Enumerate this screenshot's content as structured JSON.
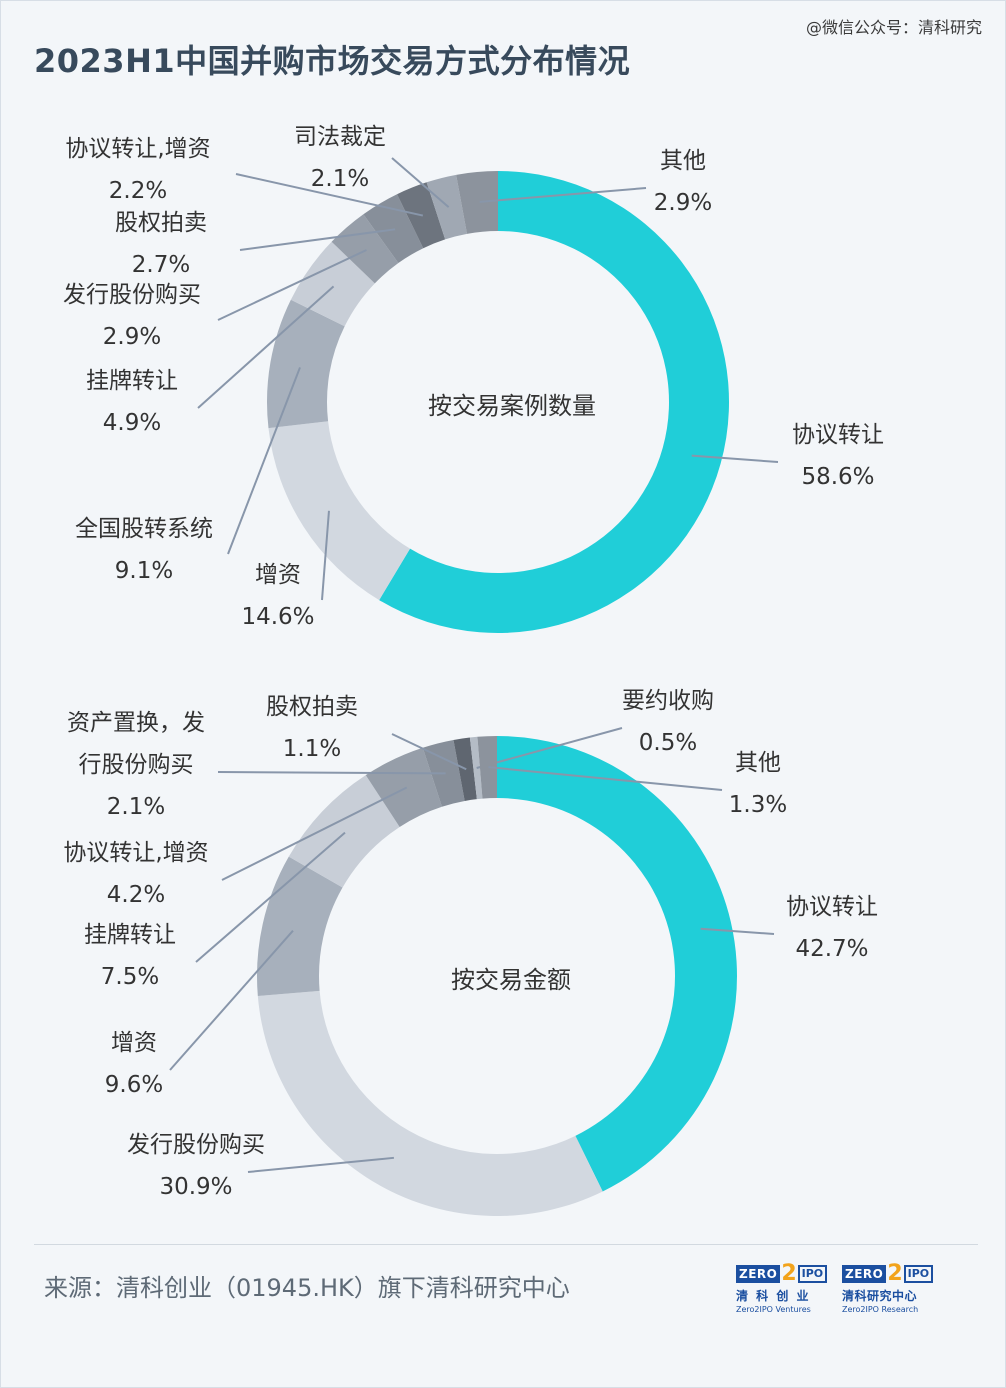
{
  "watermark": "@微信公众号：清科研究",
  "title": "2023H1中国并购市场交易方式分布情况",
  "colors": {
    "accent": "#20ced8",
    "line": "#8896aa"
  },
  "chart_data": [
    {
      "type": "pie",
      "center_label": "按交易案例数量",
      "slices": [
        {
          "label": "协议转让",
          "value": 58.6,
          "value_label": "58.6%",
          "color": "#20ced8"
        },
        {
          "label": "增资",
          "value": 14.6,
          "value_label": "14.6%",
          "color": "#d2d8e0"
        },
        {
          "label": "全国股转系统",
          "value": 9.1,
          "value_label": "9.1%",
          "color": "#a7b0bc"
        },
        {
          "label": "挂牌转让",
          "value": 4.9,
          "value_label": "4.9%",
          "color": "#c8ced7"
        },
        {
          "label": "发行股份购买",
          "value": 2.9,
          "value_label": "2.9%",
          "color": "#969ea9"
        },
        {
          "label": "股权拍卖",
          "value": 2.7,
          "value_label": "2.7%",
          "color": "#878f9a"
        },
        {
          "label": "协议转让,增资",
          "value": 2.2,
          "value_label": "2.2%",
          "color": "#6d747e"
        },
        {
          "label": "司法裁定",
          "value": 2.1,
          "value_label": "2.1%",
          "color": "#a0a8b3"
        },
        {
          "label": "其他",
          "value": 2.9,
          "value_label": "2.9%",
          "color": "#8c939d"
        }
      ]
    },
    {
      "type": "pie",
      "center_label": "按交易金额",
      "slices": [
        {
          "label": "协议转让",
          "value": 42.7,
          "value_label": "42.7%",
          "color": "#20ced8"
        },
        {
          "label": "发行股份购买",
          "value": 30.9,
          "value_label": "30.9%",
          "color": "#d2d8e0"
        },
        {
          "label": "增资",
          "value": 9.6,
          "value_label": "9.6%",
          "color": "#a7b0bc"
        },
        {
          "label": "挂牌转让",
          "value": 7.5,
          "value_label": "7.5%",
          "color": "#c8ced7"
        },
        {
          "label": "协议转让,增资",
          "value": 4.2,
          "value_label": "4.2%",
          "color": "#969ea9"
        },
        {
          "label": "资产置换，发行股份购买",
          "value": 2.1,
          "value_label": "2.1%",
          "color": "#878f9a"
        },
        {
          "label": "股权拍卖",
          "value": 1.1,
          "value_label": "1.1%",
          "color": "#5f6670"
        },
        {
          "label": "要约收购",
          "value": 0.5,
          "value_label": "0.5%",
          "color": "#b4bcc6"
        },
        {
          "label": "其他",
          "value": 1.3,
          "value_label": "1.3%",
          "color": "#8c939d"
        }
      ]
    }
  ],
  "footer": {
    "source": "来源：清科创业（01945.HK）旗下清科研究中心",
    "logo_zero": "ZERO",
    "logo_two": "2",
    "logo_ipo": "IPO",
    "logo_left_cn": "清 科 创 业",
    "logo_left_en": "Zero2IPO Ventures",
    "logo_right_cn": "清科研究中心",
    "logo_right_en": "Zero2IPO Research"
  }
}
